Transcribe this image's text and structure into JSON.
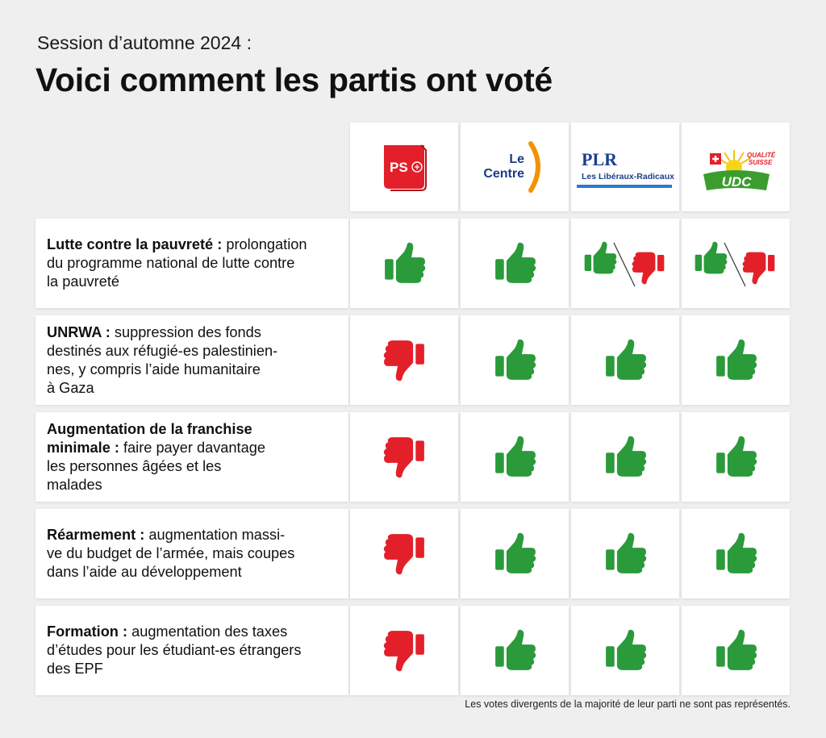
{
  "header": {
    "subtitle": "Session d’automne 2024 :",
    "title": "Voici comment les partis ont voté"
  },
  "parties": [
    {
      "id": "ps",
      "logo_text": "PS"
    },
    {
      "id": "centre",
      "logo_line1": "Le",
      "logo_line2": "Centre"
    },
    {
      "id": "plr",
      "logo_line1": "PLR",
      "logo_line2": "Les Libéraux-Radicaux"
    },
    {
      "id": "udc",
      "logo_line1": "QUALITÉ",
      "logo_line2": "SUISSE",
      "logo_main": "UDC"
    }
  ],
  "rows": [
    {
      "bold": "Lutte contre la pauvreté :",
      "line1_rest": " prolongation",
      "lines": [
        "du programme national de lutte contre",
        "la pauvreté"
      ],
      "votes": [
        "yes",
        "yes",
        "split",
        "split"
      ]
    },
    {
      "bold": "UNRWA :",
      "line1_rest": " suppression des fonds",
      "lines": [
        "destinés aux réfugié-es palestinien-",
        "nes, y compris l’aide humanitaire",
        "à Gaza"
      ],
      "votes": [
        "no",
        "yes",
        "yes",
        "yes"
      ]
    },
    {
      "bold": "Augmentation de la franchise",
      "line1_rest": "",
      "bold2": "minimale :",
      "line2_rest": " faire payer davantage",
      "lines": [
        "les personnes âgées et les",
        "malades"
      ],
      "votes": [
        "no",
        "yes",
        "yes",
        "yes"
      ]
    },
    {
      "bold": "Réarmement :",
      "line1_rest": " augmentation massi-",
      "lines": [
        "ve du budget de l’armée, mais coupes",
        "dans l’aide au développement"
      ],
      "votes": [
        "no",
        "yes",
        "yes",
        "yes"
      ]
    },
    {
      "bold": "Formation :",
      "line1_rest": " augmentation des taxes",
      "lines": [
        "d’études pour les étudiant-es étrangers",
        "des EPF"
      ],
      "votes": [
        "no",
        "yes",
        "yes",
        "yes"
      ]
    }
  ],
  "footnote": "Les votes divergents de la majorité de leur parti ne sont pas représentés.",
  "colors": {
    "yes": "#2a9a3a",
    "no": "#e3202a",
    "ps": "#e3202a",
    "centre_text": "#1d3a86",
    "centre_arc": "#f39200",
    "plr_text": "#1b3f8f",
    "plr_line": "#2a7ad0",
    "udc_green": "#3c9d2f"
  }
}
